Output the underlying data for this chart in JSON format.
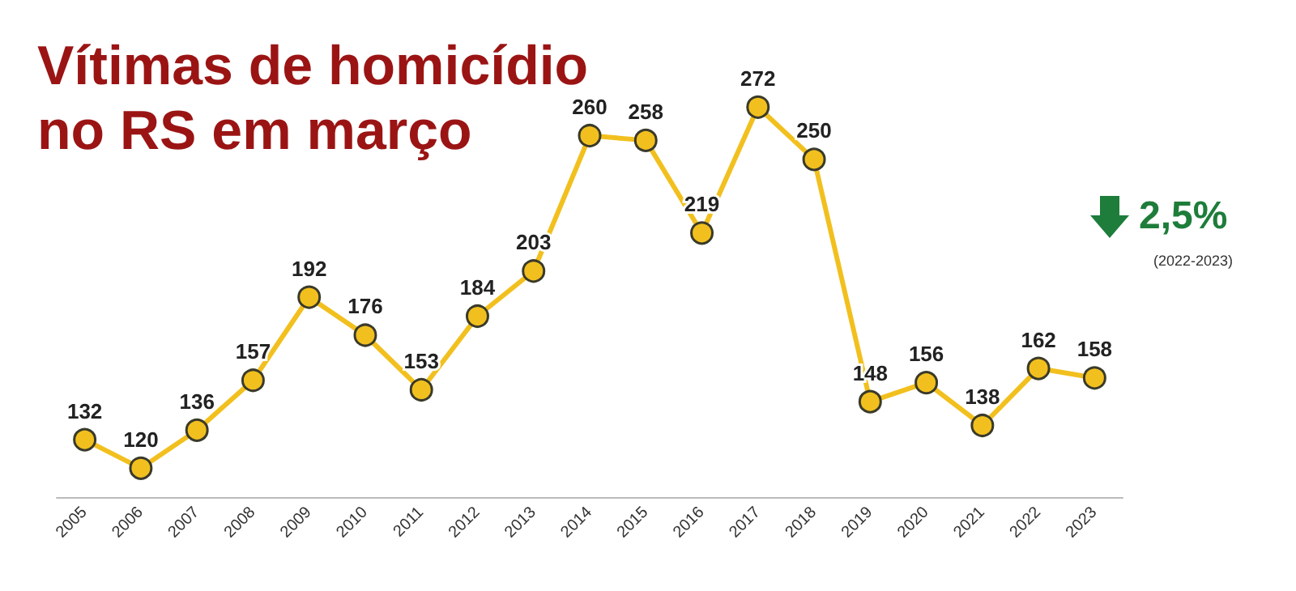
{
  "chart_data": {
    "type": "line",
    "title": "Vítimas de homicídio\nno RS em março",
    "categories": [
      "2005",
      "2006",
      "2007",
      "2008",
      "2009",
      "2010",
      "2011",
      "2012",
      "2013",
      "2014",
      "2015",
      "2016",
      "2017",
      "2018",
      "2019",
      "2020",
      "2021",
      "2022",
      "2023"
    ],
    "series": [
      {
        "color": "#f2c01e",
        "values": [
          132,
          120,
          136,
          157,
          192,
          176,
          153,
          184,
          203,
          260,
          258,
          219,
          272,
          250,
          148,
          156,
          138,
          162,
          158
        ]
      }
    ],
    "data_labels": true,
    "marker": "circle",
    "line_style": "solid",
    "grid": false,
    "tick_labels": "x",
    "annotations": [
      "2,5%",
      "(2022-2023)"
    ]
  }
}
